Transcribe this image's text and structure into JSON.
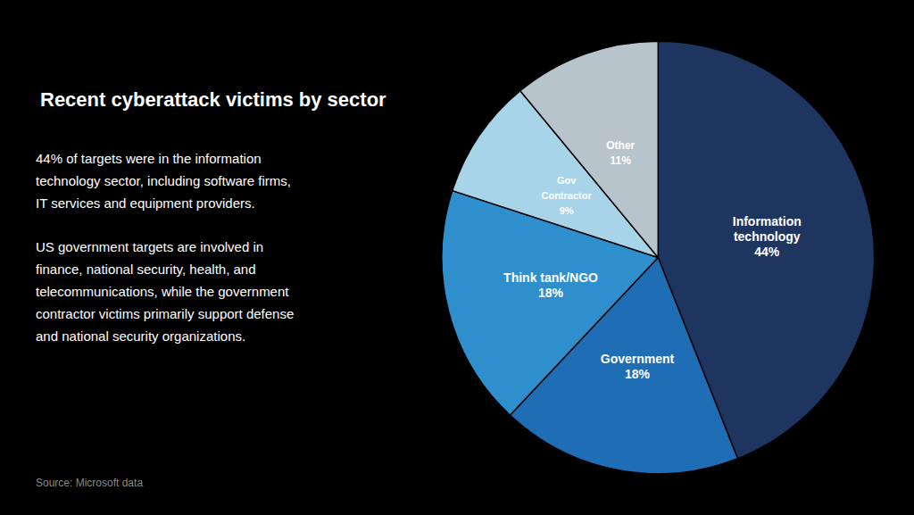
{
  "chart_data": {
    "type": "pie",
    "title": "Recent cyberattack victims by sector",
    "annotations": [
      "44% of targets were in the information\ntechnology sector, including software firms,\nIT services and equipment providers.",
      "US government targets are involved in\nfinance, national security, health, and\ntelecommunications, while the government\ncontractor victims primarily support defense\nand national security organizations.",
      "Source: Microsoft data"
    ],
    "categories": [
      "Information\ntechnology",
      "Government",
      "Think tank/NGO",
      "Gov\nContractor",
      "Other"
    ],
    "values": [
      44,
      18,
      18,
      9,
      11
    ],
    "value_labels": [
      "44%",
      "18%",
      "18%",
      "9%",
      "11%"
    ],
    "colors": [
      "#1e3560",
      "#1f6db5",
      "#2e8fcc",
      "#a8d4ea",
      "#b8c4cc"
    ],
    "data_labels": true
  }
}
